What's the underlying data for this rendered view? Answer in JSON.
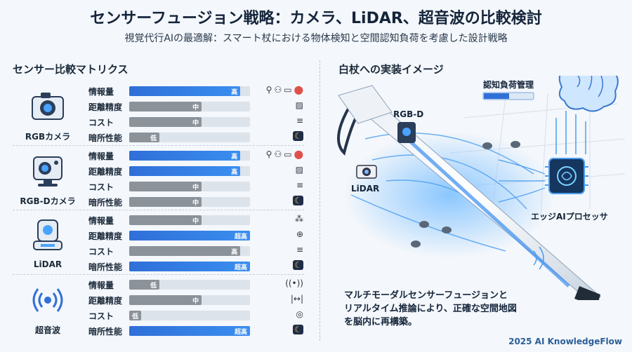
{
  "header": {
    "title": "センサーフュージョン戦略：カメラ、LiDAR、超音波の比較検討",
    "subtitle": "視覚代行AIの最適解：スマート杖における物体検知と空間認知負荷を考慮した設計戦略"
  },
  "left_panel": {
    "heading": "センサー比較マトリクス",
    "sensors": [
      {
        "name": "RGBカメラ",
        "icon": "camera-icon",
        "metrics": [
          {
            "label": "情報量",
            "level": "高",
            "fraction": 0.92,
            "color": "blue",
            "icons": [
              "person-icon",
              "people-icon",
              "bag-icon",
              "color-dots-icon"
            ]
          },
          {
            "label": "距離精度",
            "level": "中",
            "fraction": 0.6,
            "color": "gray",
            "icons": [
              "image-icon"
            ]
          },
          {
            "label": "コスト",
            "level": "中",
            "fraction": 0.6,
            "color": "gray",
            "icons": [
              "coins-icon"
            ]
          },
          {
            "label": "暗所性能",
            "level": "低",
            "fraction": 0.25,
            "color": "gray",
            "icons": [
              "moon-icon"
            ]
          }
        ]
      },
      {
        "name": "RGB-Dカメラ",
        "icon": "depth-camera-icon",
        "metrics": [
          {
            "label": "情報量",
            "level": "高",
            "fraction": 0.92,
            "color": "blue",
            "icons": [
              "person-icon",
              "people-icon",
              "bag-icon",
              "color-dots-icon"
            ]
          },
          {
            "label": "距離精度",
            "level": "高",
            "fraction": 0.92,
            "color": "blue",
            "icons": [
              "image-icon"
            ]
          },
          {
            "label": "コスト",
            "level": "中",
            "fraction": 0.6,
            "color": "gray",
            "icons": [
              "coins-icon"
            ]
          },
          {
            "label": "暗所性能",
            "level": "中",
            "fraction": 0.6,
            "color": "gray",
            "icons": [
              "moon-icon"
            ]
          }
        ]
      },
      {
        "name": "LiDAR",
        "icon": "lidar-icon",
        "metrics": [
          {
            "label": "情報量",
            "level": "中",
            "fraction": 0.6,
            "color": "gray",
            "icons": [
              "dots-icon"
            ]
          },
          {
            "label": "距離精度",
            "level": "超高",
            "fraction": 1.0,
            "color": "blue",
            "icons": [
              "crosshair-icon"
            ]
          },
          {
            "label": "コスト",
            "level": "高",
            "fraction": 0.92,
            "color": "gray",
            "icons": [
              "coins-icon"
            ]
          },
          {
            "label": "暗所性能",
            "level": "超高",
            "fraction": 1.0,
            "color": "blue",
            "icons": [
              "moon-icon"
            ]
          }
        ]
      },
      {
        "name": "超音波",
        "icon": "ultrasonic-icon",
        "metrics": [
          {
            "label": "情報量",
            "level": "低",
            "fraction": 0.25,
            "color": "gray",
            "icons": [
              "wave-icon"
            ]
          },
          {
            "label": "距離精度",
            "level": "中",
            "fraction": 0.6,
            "color": "gray",
            "icons": [
              "range-icon"
            ]
          },
          {
            "label": "コスト",
            "level": "低",
            "fraction": 0.1,
            "color": "gray",
            "icons": [
              "coin-icon"
            ]
          },
          {
            "label": "暗所性能",
            "level": "超高",
            "fraction": 1.0,
            "color": "blue",
            "icons": [
              "moon-icon"
            ]
          }
        ]
      }
    ]
  },
  "right_panel": {
    "heading": "白杖への実装イメージ",
    "labels": {
      "rgbd": "RGB-D",
      "lidar": "LiDAR",
      "cognitive_load": "認知負荷管理",
      "edge_ai": "エッジAIプロセッサ"
    },
    "caption_lines": [
      "マルチモーダルセンサーフュージョンと",
      "リアルタイム推論により、正確な空間地図",
      "を脳内に再構築。"
    ]
  },
  "footer": {
    "credit": "2025 AI KnowledgeFlow"
  },
  "colors": {
    "accent_blue": "#2f6fd8",
    "bar_gray": "#8c9299",
    "track": "#dde3ea"
  }
}
